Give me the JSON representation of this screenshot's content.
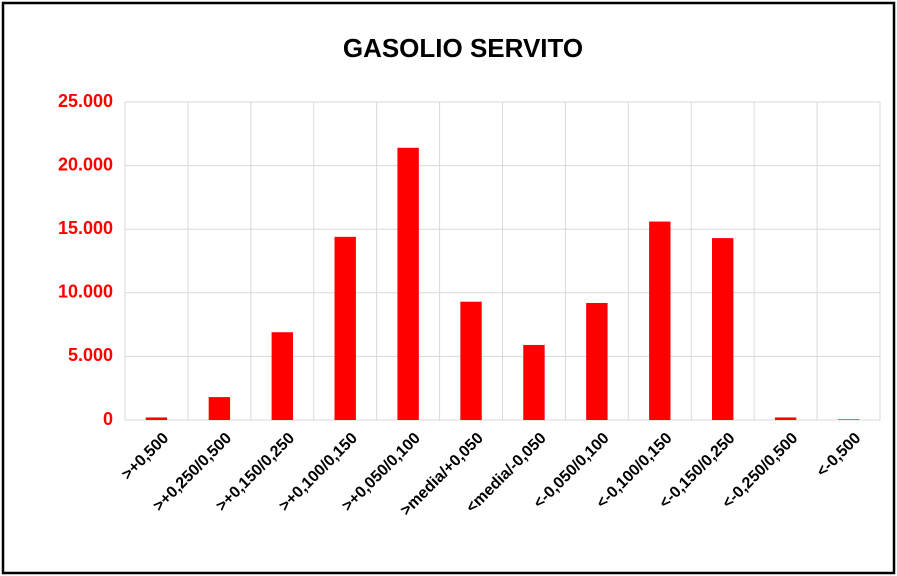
{
  "chart_data": {
    "type": "bar",
    "title": "GASOLIO SERVITO",
    "categories": [
      ">+0,500",
      ">+0,250/0,500",
      ">+0,150/0,250",
      ">+0,100/0,150",
      ">+0,050/0,100",
      ">media/+0,050",
      "<media/-0,050",
      "<-0,050/0,100",
      "<-0,100/0,150",
      "<-0,150/0,250",
      "<-0,250/0,500",
      "<-0,500"
    ],
    "values": [
      200,
      1800,
      6900,
      14400,
      21400,
      9300,
      5900,
      9200,
      15600,
      14300,
      200,
      50
    ],
    "color": "#ff0000",
    "ylim": [
      0,
      25000
    ],
    "yticks": [
      0,
      {
        "value": 5000,
        "label": "5.000"
      },
      {
        "value": 10000,
        "label": "10.000"
      },
      {
        "value": 15000,
        "label": "15.000"
      },
      {
        "value": 20000,
        "label": "20.000"
      },
      {
        "value": 25000,
        "label": "25.000"
      }
    ],
    "grid": true
  }
}
